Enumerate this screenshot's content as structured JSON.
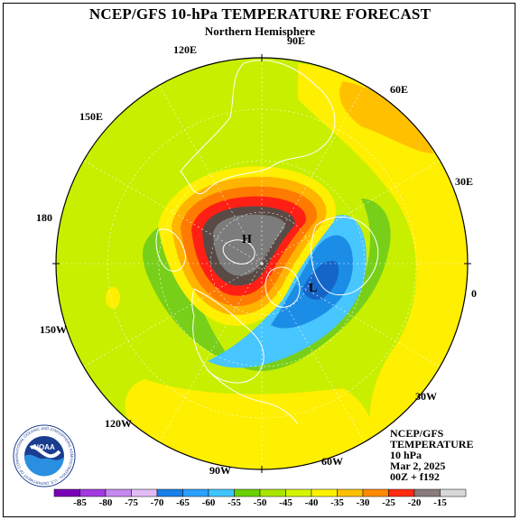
{
  "title": "NCEP/GFS 10-hPa TEMPERATURE FORECAST",
  "subtitle": "Northern Hemisphere",
  "longitude_labels": {
    "e90": "90E",
    "e120": "120E",
    "e60": "60E",
    "e150": "150E",
    "e30": "30E",
    "d180": "180",
    "zero": "0",
    "w150": "150W",
    "w30": "30W",
    "w120": "120W",
    "w90": "90W",
    "w60": "60W"
  },
  "extrema": {
    "high": "H",
    "low": "L"
  },
  "info": {
    "line1": "NCEP/GFS",
    "line2": "TEMPERATURE",
    "line3": "10 hPa",
    "line4": "Mar 2, 2025",
    "line5": "00Z + f192"
  },
  "logo": {
    "text": "NOAA",
    "ring_text": "NATIONAL OCEANIC AND ATMOSPHERIC ADMINISTRATION · U.S. DEPARTMENT OF COMMERCE"
  },
  "colorbar": {
    "labels": [
      "-85",
      "-80",
      "-75",
      "-70",
      "-65",
      "-60",
      "-55",
      "-50",
      "-45",
      "-40",
      "-35",
      "-30",
      "-25",
      "-20",
      "-15"
    ],
    "colors": [
      "#7a00b8",
      "#a33be0",
      "#c589ef",
      "#e2bcf7",
      "#1a7fe8",
      "#2aa0ff",
      "#3ec4ff",
      "#6bd100",
      "#a8e600",
      "#d4f500",
      "#fff200",
      "#ffc000",
      "#ff8a00",
      "#ff2a10",
      "#8a7c7c",
      "#d8d8d8"
    ]
  },
  "colors": {
    "warm_core": "#7c7c7c",
    "dark_core": "#5a4a46",
    "red": "#ff1f14",
    "orange": "#ff7a00",
    "amber": "#ffb400",
    "yellow": "#ffef00",
    "lime": "#c8ef00",
    "green": "#78cf1a",
    "cold_blue": "#1c8de6",
    "cyan": "#47c6ff"
  }
}
